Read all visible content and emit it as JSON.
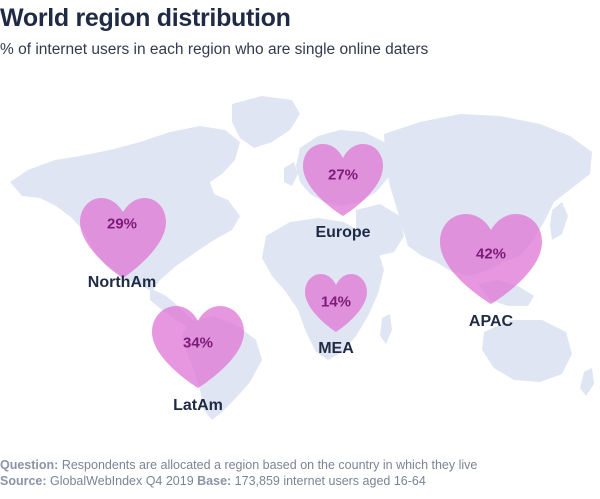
{
  "title": "World region distribution",
  "subtitle": "% of internet users in each region who are single online daters",
  "regions": [
    {
      "name": "NorthAm",
      "value": "29%"
    },
    {
      "name": "Europe",
      "value": "27%"
    },
    {
      "name": "APAC",
      "value": "42%"
    },
    {
      "name": "MEA",
      "value": "14%"
    },
    {
      "name": "LatAm",
      "value": "34%"
    }
  ],
  "footer": {
    "question_label": "Question:",
    "question_text": "Respondents are allocated a region based on the country in which they live",
    "source_label": "Source:",
    "source_text": "GlobalWebIndex Q4 2019",
    "base_label": "Base:",
    "base_text": "173,859 internet users aged 16-64"
  },
  "colors": {
    "map_land": "#dfe5f2",
    "heart_fill": "#e07ad6",
    "value_text": "#7e1a78",
    "title_text": "#1f2a44"
  }
}
